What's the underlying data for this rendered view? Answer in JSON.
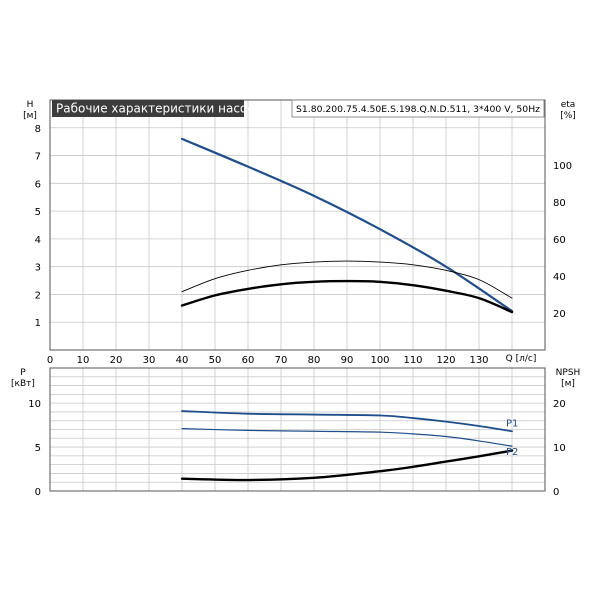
{
  "header": {
    "title": "Рабочие характеристики насоса",
    "model": "S1.80.200.75.4.50E.S.198.Q.N.D.511, 3*400 V, 50Hz"
  },
  "chart_data": [
    {
      "type": "line",
      "name": "head-eta",
      "ylabel_left": [
        "H",
        "[м]"
      ],
      "ylabel_right": [
        "eta",
        "[%]"
      ],
      "xlabel": "Q [л/с]",
      "xlim": [
        0,
        150
      ],
      "ylim_left": [
        0,
        9
      ],
      "ylim_right": [
        0,
        135
      ],
      "x_ticks": [
        0,
        10,
        20,
        30,
        40,
        50,
        60,
        70,
        80,
        90,
        100,
        110,
        120,
        130
      ],
      "left_ticks": [
        1,
        2,
        3,
        4,
        5,
        6,
        7,
        8
      ],
      "right_ticks": [
        20,
        40,
        60,
        80,
        100
      ],
      "grid": true,
      "series": [
        {
          "axis": "left",
          "color": "#1f4e8c",
          "width": 2.2,
          "x": [
            40,
            60,
            80,
            100,
            120,
            140
          ],
          "y": [
            7.6,
            6.6,
            5.55,
            4.35,
            3.0,
            1.4
          ]
        },
        {
          "axis": "right",
          "color": "#000000",
          "width": 0.9,
          "x": [
            40,
            50,
            60,
            70,
            80,
            90,
            100,
            110,
            120,
            130,
            140
          ],
          "y": [
            31.5,
            38.5,
            43,
            46,
            47.5,
            48,
            47.5,
            46,
            43,
            38,
            28
          ]
        },
        {
          "axis": "right",
          "color": "#000000",
          "width": 2.4,
          "x": [
            40,
            50,
            60,
            70,
            80,
            90,
            100,
            110,
            120,
            130,
            140
          ],
          "y": [
            24,
            29.5,
            33,
            35.5,
            36.8,
            37.2,
            36.8,
            35,
            32,
            28,
            20.5
          ]
        }
      ]
    },
    {
      "type": "line",
      "name": "power-npsh",
      "ylabel_left": [
        "P",
        "[кВт]"
      ],
      "ylabel_right": [
        "NPSH",
        "[м]"
      ],
      "xlim": [
        0,
        150
      ],
      "ylim_left": [
        0,
        14
      ],
      "ylim_right": [
        0,
        28
      ],
      "left_ticks": [
        0,
        5,
        10
      ],
      "right_ticks": [
        0,
        10,
        20
      ],
      "grid": true,
      "series": [
        {
          "name": "P1",
          "axis": "left",
          "color": "#1f4e8c",
          "width": 1.8,
          "x": [
            40,
            60,
            80,
            100,
            110,
            120,
            130,
            140
          ],
          "y": [
            9.1,
            8.8,
            8.7,
            8.6,
            8.3,
            7.9,
            7.4,
            6.8
          ]
        },
        {
          "name": "P2",
          "axis": "left",
          "color": "#1f4e8c",
          "width": 1.2,
          "x": [
            40,
            60,
            80,
            100,
            110,
            120,
            130,
            140
          ],
          "y": [
            7.1,
            6.9,
            6.8,
            6.7,
            6.5,
            6.2,
            5.7,
            5.1
          ]
        },
        {
          "axis": "right",
          "color": "#000000",
          "width": 2.4,
          "x": [
            40,
            60,
            80,
            100,
            110,
            120,
            130,
            140
          ],
          "y": [
            2.8,
            2.5,
            3.0,
            4.5,
            5.5,
            6.7,
            7.9,
            9.2
          ]
        }
      ]
    }
  ]
}
